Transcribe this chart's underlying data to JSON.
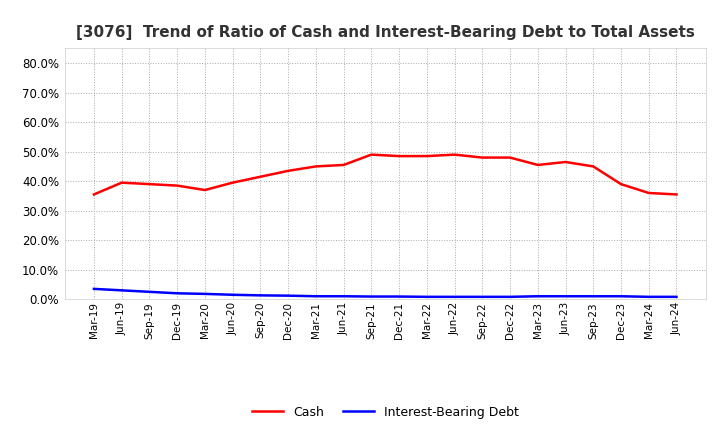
{
  "title": "[3076]  Trend of Ratio of Cash and Interest-Bearing Debt to Total Assets",
  "title_fontsize": 11,
  "ylim": [
    0.0,
    0.85
  ],
  "yticks": [
    0.0,
    0.1,
    0.2,
    0.3,
    0.4,
    0.5,
    0.6,
    0.7,
    0.8
  ],
  "x_labels": [
    "Mar-19",
    "Jun-19",
    "Sep-19",
    "Dec-19",
    "Mar-20",
    "Jun-20",
    "Sep-20",
    "Dec-20",
    "Mar-21",
    "Jun-21",
    "Sep-21",
    "Dec-21",
    "Mar-22",
    "Jun-22",
    "Sep-22",
    "Dec-22",
    "Mar-23",
    "Jun-23",
    "Sep-23",
    "Dec-23",
    "Mar-24",
    "Jun-24"
  ],
  "cash_values": [
    0.355,
    0.395,
    0.39,
    0.385,
    0.37,
    0.395,
    0.415,
    0.435,
    0.45,
    0.455,
    0.49,
    0.485,
    0.485,
    0.49,
    0.48,
    0.48,
    0.455,
    0.465,
    0.45,
    0.39,
    0.36,
    0.355
  ],
  "debt_values": [
    0.035,
    0.03,
    0.025,
    0.02,
    0.018,
    0.015,
    0.013,
    0.012,
    0.01,
    0.01,
    0.009,
    0.009,
    0.008,
    0.008,
    0.008,
    0.008,
    0.01,
    0.01,
    0.01,
    0.01,
    0.008,
    0.008
  ],
  "cash_color": "#ff0000",
  "debt_color": "#0000ff",
  "background_color": "#ffffff",
  "plot_bg_color": "#ffffff",
  "grid_color": "#aaaaaa",
  "cash_label": "Cash",
  "debt_label": "Interest-Bearing Debt"
}
